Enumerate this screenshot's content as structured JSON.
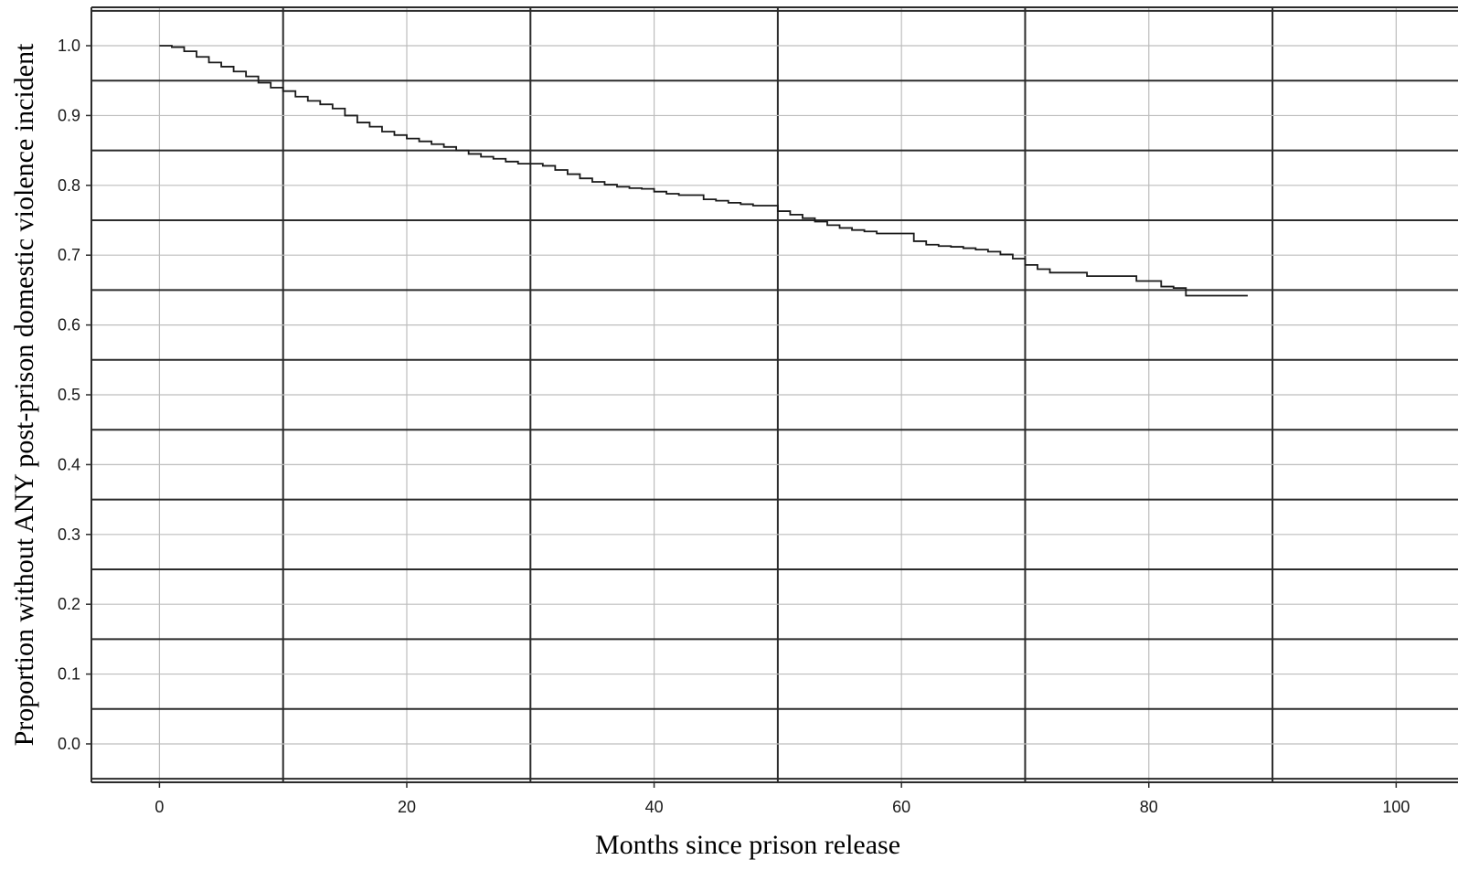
{
  "chart_data": {
    "type": "line",
    "title": "",
    "xlabel": "Months since prison release",
    "ylabel": "Proportion without ANY post-prison domestic violence incident",
    "xlim": [
      -5.5,
      105
    ],
    "ylim": [
      -0.055,
      1.055
    ],
    "x_ticks": [
      "0",
      "20",
      "40",
      "60",
      "80",
      "100"
    ],
    "y_ticks": [
      "0.0",
      "0.1",
      "0.2",
      "0.3",
      "0.4",
      "0.5",
      "0.6",
      "0.7",
      "0.8",
      "0.9",
      "1.0"
    ],
    "grid": true,
    "legend": false,
    "colors": {
      "line": "#1a1a1a",
      "major_grid": "#2b2b2b",
      "minor_grid": "#bdbdbd",
      "background": "#ffffff"
    },
    "series": [
      {
        "step": "post",
        "x": [
          0,
          1,
          2,
          3,
          4,
          5,
          6,
          7,
          8,
          9,
          10,
          11,
          12,
          13,
          14,
          15,
          16,
          17,
          18,
          19,
          20,
          21,
          22,
          23,
          24,
          25,
          26,
          27,
          28,
          29,
          31,
          32,
          33,
          34,
          35,
          36,
          37,
          38,
          39,
          40,
          41,
          42,
          44,
          45,
          46,
          47,
          48,
          50,
          51,
          52,
          53,
          54,
          55,
          56,
          57,
          58,
          61,
          62,
          63,
          64,
          65,
          66,
          67,
          68,
          69,
          70,
          71,
          72,
          73,
          74,
          75,
          76,
          79,
          80,
          81,
          82,
          83,
          88
        ],
        "values": [
          1.0,
          0.998,
          0.992,
          0.984,
          0.976,
          0.97,
          0.963,
          0.956,
          0.947,
          0.94,
          0.935,
          0.927,
          0.921,
          0.916,
          0.91,
          0.9,
          0.89,
          0.884,
          0.877,
          0.872,
          0.867,
          0.863,
          0.859,
          0.855,
          0.85,
          0.845,
          0.841,
          0.838,
          0.834,
          0.831,
          0.828,
          0.822,
          0.816,
          0.81,
          0.805,
          0.801,
          0.798,
          0.796,
          0.795,
          0.791,
          0.788,
          0.786,
          0.78,
          0.778,
          0.775,
          0.773,
          0.771,
          0.763,
          0.758,
          0.753,
          0.748,
          0.743,
          0.739,
          0.736,
          0.734,
          0.731,
          0.72,
          0.715,
          0.713,
          0.712,
          0.71,
          0.708,
          0.705,
          0.701,
          0.695,
          0.686,
          0.68,
          0.675,
          0.675,
          0.675,
          0.67,
          0.67,
          0.663,
          0.663,
          0.655,
          0.653,
          0.642,
          0.642
        ]
      }
    ]
  }
}
